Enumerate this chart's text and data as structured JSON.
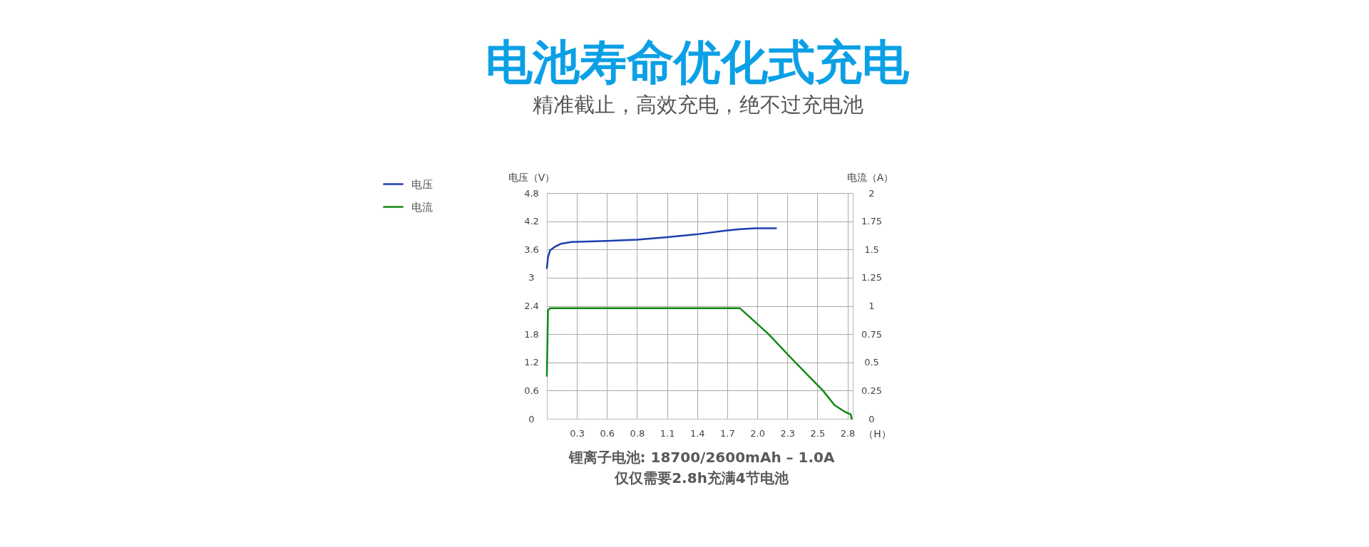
{
  "chart_data": {
    "type": "line",
    "title": "电池寿命优化式充电",
    "subtitle": "精准截止，高效充电，绝不过充电池",
    "xlabel": "（H）",
    "ylabel": "电压（V）",
    "y2label": "电流（A）",
    "annotations": [
      "锂离子电池: 18700/2600mAh – 1.0A",
      "仅仅需要2.8h充满4节电池"
    ],
    "series": [
      {
        "name": "电压",
        "color": "#1d3fae",
        "x": [
          0,
          0.01,
          0.03,
          0.07,
          0.13,
          0.23,
          0.56,
          0.85,
          1.13,
          1.4,
          1.68,
          1.81,
          1.96,
          2.15
        ],
        "values": [
          3.2,
          3.43,
          3.58,
          3.65,
          3.72,
          3.76,
          3.78,
          3.81,
          3.86,
          3.92,
          4.0,
          4.03,
          4.05,
          4.05
        ]
      },
      {
        "name": "电流",
        "color": "#118811",
        "axis": "y2",
        "x": [
          0,
          0.01,
          0.03,
          1.81,
          2.08,
          2.33,
          2.59,
          2.7,
          2.8,
          2.85,
          2.86
        ],
        "values": [
          0.38,
          0.96,
          0.98,
          0.98,
          0.75,
          0.5,
          0.25,
          0.12,
          0.06,
          0.04,
          0
        ]
      }
    ],
    "xlim": [
      0,
      2.87
    ],
    "xticks": [
      {
        "value": 0.282,
        "label": "0.3"
      },
      {
        "value": 0.564,
        "label": "0.6"
      },
      {
        "value": 0.846,
        "label": "0.8"
      },
      {
        "value": 1.128,
        "label": "1.1"
      },
      {
        "value": 1.41,
        "label": "1.4"
      },
      {
        "value": 1.692,
        "label": "1.7"
      },
      {
        "value": 1.974,
        "label": "2.0"
      },
      {
        "value": 2.256,
        "label": "2.3"
      },
      {
        "value": 2.538,
        "label": "2.5"
      },
      {
        "value": 2.82,
        "label": "2.8"
      }
    ],
    "ylim": [
      0,
      4.8
    ],
    "yticks": [
      0,
      0.6,
      1.2,
      1.8,
      2.4,
      3,
      3.6,
      4.2,
      4.8
    ],
    "y2lim": [
      0,
      2
    ],
    "y2ticks": [
      0,
      0.25,
      0.5,
      0.75,
      1,
      1.25,
      1.5,
      1.75,
      2
    ],
    "grid": true,
    "legend": "left"
  }
}
